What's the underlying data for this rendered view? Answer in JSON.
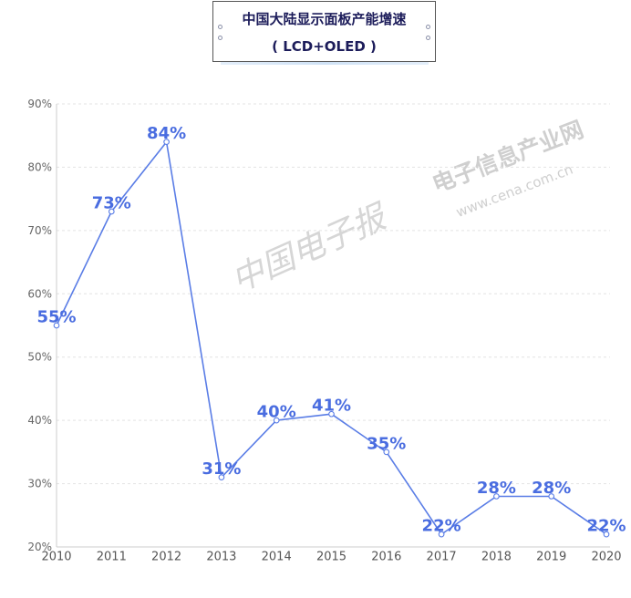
{
  "colors": {
    "line": "#5a7de6",
    "data_label": "#4a6de0",
    "title": "#1c1c5a",
    "axis": "#cccccc",
    "grid": "#e3e3e3",
    "tick_label": "#666666",
    "watermark": "#cfcfcf"
  },
  "watermarks": {
    "site_name": "电子信息产业网",
    "site_url": "www.cena.com.cn",
    "newspaper": "中国电子报"
  },
  "chart_data": {
    "type": "line",
    "title": "中国大陆显示面板产能增速",
    "subtitle": "( LCD+OLED )",
    "xlabel": "",
    "ylabel": "",
    "categories": [
      "2010",
      "2011",
      "2012",
      "2013",
      "2014",
      "2015",
      "2016",
      "2017",
      "2018",
      "2019",
      "2020"
    ],
    "series": [
      {
        "values": [
          55,
          73,
          84,
          31,
          40,
          41,
          35,
          22,
          28,
          28,
          22
        ],
        "data_labels": [
          "55%",
          "73%",
          "84%",
          "31%",
          "40%",
          "41%",
          "35%",
          "22%",
          "28%",
          "28%",
          "22%"
        ]
      }
    ],
    "ylim": [
      20,
      90
    ],
    "yticks": [
      20,
      30,
      40,
      50,
      60,
      70,
      80,
      90
    ],
    "ytick_labels": [
      "20%",
      "30%",
      "40%",
      "50%",
      "60%",
      "70%",
      "80%",
      "90%"
    ],
    "grid": true,
    "legend": "none"
  }
}
